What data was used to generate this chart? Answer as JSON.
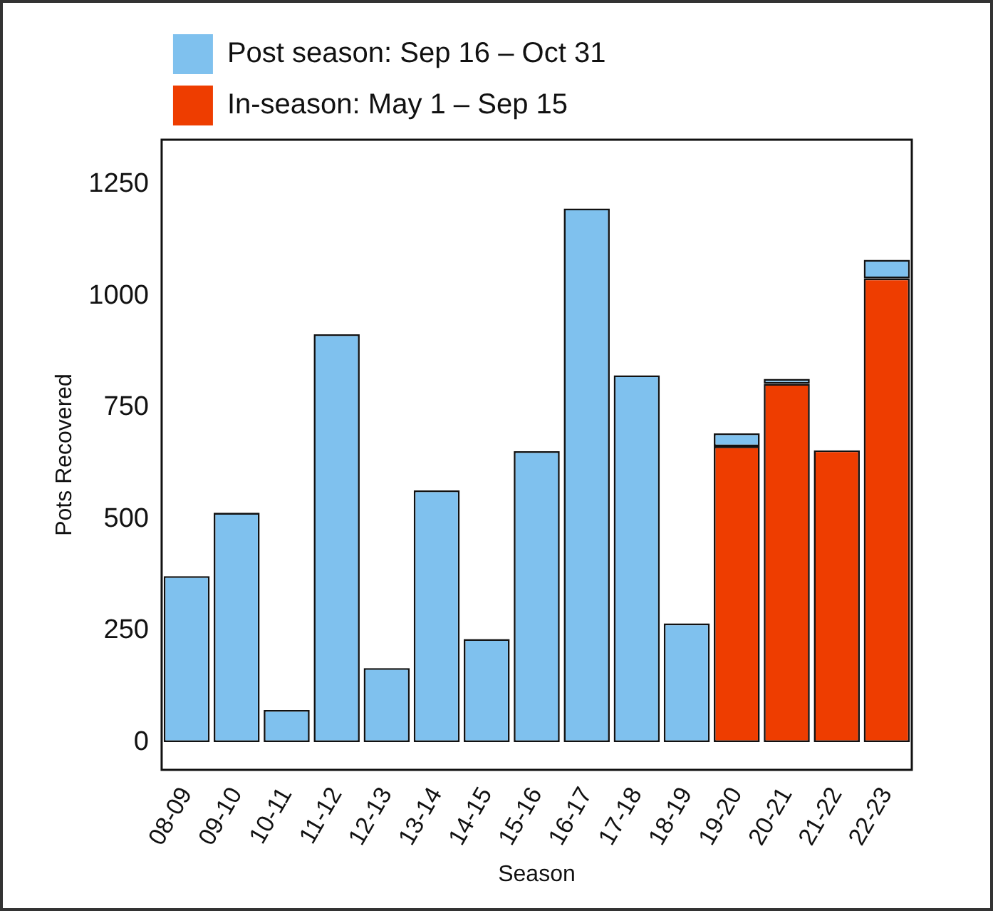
{
  "chart_data": {
    "type": "bar",
    "stacked": true,
    "xlabel": "Season",
    "ylabel": "Pots Recovered",
    "categories": [
      "08-09",
      "09-10",
      "10-11",
      "11-12",
      "12-13",
      "13-14",
      "14-15",
      "15-16",
      "16-17",
      "17-18",
      "18-19",
      "19-20",
      "20-21",
      "21-22",
      "22-23"
    ],
    "series": [
      {
        "name": "In-season: May 1 – Sep 15",
        "color": "#ee3d00",
        "values": [
          0,
          0,
          0,
          0,
          0,
          0,
          0,
          0,
          0,
          0,
          0,
          663,
          803,
          654,
          1039
        ]
      },
      {
        "name": "Post season: Sep 16 – Oct 31",
        "color": "#7fc1ee",
        "values": [
          372,
          514,
          72,
          914,
          166,
          564,
          231,
          652,
          1196,
          822,
          266,
          29,
          11,
          0,
          42
        ]
      }
    ],
    "ylim": [
      -62,
      1350
    ],
    "yticks": [
      0,
      250,
      500,
      750,
      1000,
      1250
    ],
    "grid": false,
    "legend": "top left"
  }
}
